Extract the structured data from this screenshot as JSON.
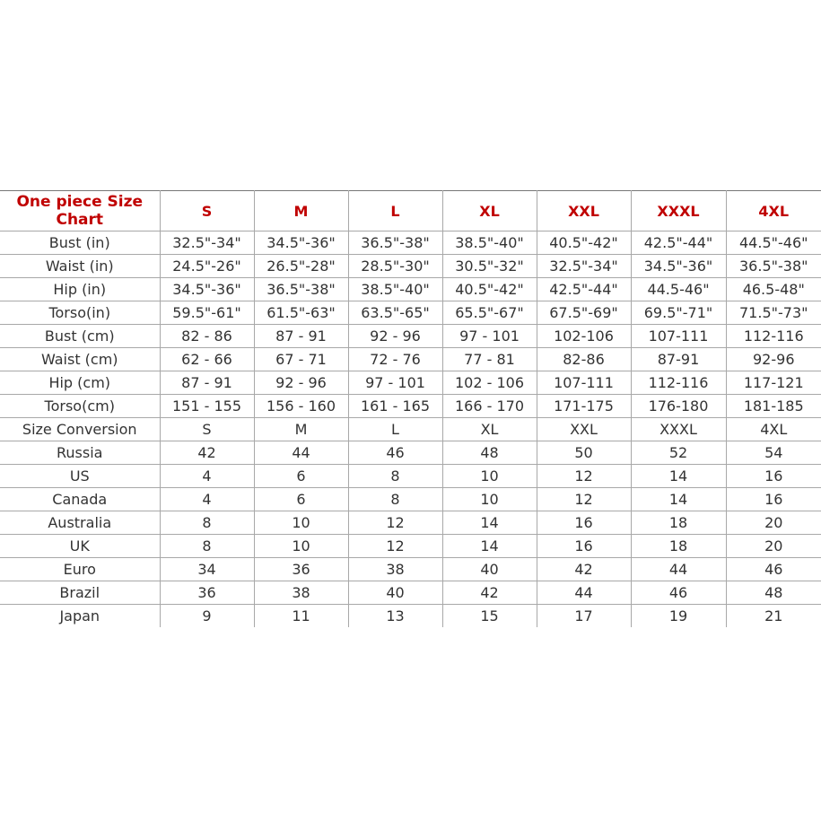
{
  "title": "One piece Size Chart",
  "colors": {
    "header": "#c00000",
    "text": "#333333",
    "grid": "#a8a8a8"
  },
  "sizes": [
    "S",
    "M",
    "L",
    "XL",
    "XXL",
    "XXXL",
    "4XL"
  ],
  "rows": [
    {
      "label": "Bust (in)",
      "values": [
        "32.5\"-34\"",
        "34.5\"-36\"",
        "36.5\"-38\"",
        "38.5\"-40\"",
        "40.5\"-42\"",
        "42.5\"-44\"",
        "44.5\"-46\""
      ]
    },
    {
      "label": "Waist (in)",
      "values": [
        "24.5\"-26\"",
        "26.5\"-28\"",
        "28.5\"-30\"",
        "30.5\"-32\"",
        "32.5\"-34\"",
        "34.5\"-36\"",
        "36.5\"-38\""
      ]
    },
    {
      "label": "Hip (in)",
      "values": [
        "34.5\"-36\"",
        "36.5\"-38\"",
        "38.5\"-40\"",
        "40.5\"-42\"",
        "42.5\"-44\"",
        "44.5-46\"",
        "46.5-48\""
      ]
    },
    {
      "label": "Torso(in)",
      "values": [
        "59.5\"-61\"",
        "61.5\"-63\"",
        "63.5\"-65\"",
        "65.5\"-67\"",
        "67.5\"-69\"",
        "69.5\"-71\"",
        "71.5\"-73\""
      ]
    },
    {
      "label": "Bust (cm)",
      "values": [
        "82 - 86",
        "87 - 91",
        "92 - 96",
        "97 - 101",
        "102-106",
        "107-111",
        "112-116"
      ]
    },
    {
      "label": "Waist (cm)",
      "values": [
        "62 - 66",
        "67 - 71",
        "72 - 76",
        "77 - 81",
        "82-86",
        "87-91",
        "92-96"
      ]
    },
    {
      "label": "Hip (cm)",
      "values": [
        "87 - 91",
        "92 - 96",
        "97 - 101",
        "102 - 106",
        "107-111",
        "112-116",
        "117-121"
      ]
    },
    {
      "label": "Torso(cm)",
      "values": [
        "151 - 155",
        "156 - 160",
        "161 - 165",
        "166 - 170",
        "171-175",
        "176-180",
        "181-185"
      ]
    },
    {
      "label": "Size Conversion",
      "values": [
        "S",
        "M",
        "L",
        "XL",
        "XXL",
        "XXXL",
        "4XL"
      ]
    },
    {
      "label": "Russia",
      "values": [
        "42",
        "44",
        "46",
        "48",
        "50",
        "52",
        "54"
      ]
    },
    {
      "label": "US",
      "values": [
        "4",
        "6",
        "8",
        "10",
        "12",
        "14",
        "16"
      ]
    },
    {
      "label": "Canada",
      "values": [
        "4",
        "6",
        "8",
        "10",
        "12",
        "14",
        "16"
      ]
    },
    {
      "label": "Australia",
      "values": [
        "8",
        "10",
        "12",
        "14",
        "16",
        "18",
        "20"
      ]
    },
    {
      "label": "UK",
      "values": [
        "8",
        "10",
        "12",
        "14",
        "16",
        "18",
        "20"
      ]
    },
    {
      "label": "Euro",
      "values": [
        "34",
        "36",
        "38",
        "40",
        "42",
        "44",
        "46"
      ]
    },
    {
      "label": "Brazil",
      "values": [
        "36",
        "38",
        "40",
        "42",
        "44",
        "46",
        "48"
      ]
    },
    {
      "label": "Japan",
      "values": [
        "9",
        "11",
        "13",
        "15",
        "17",
        "19",
        "21"
      ]
    }
  ]
}
